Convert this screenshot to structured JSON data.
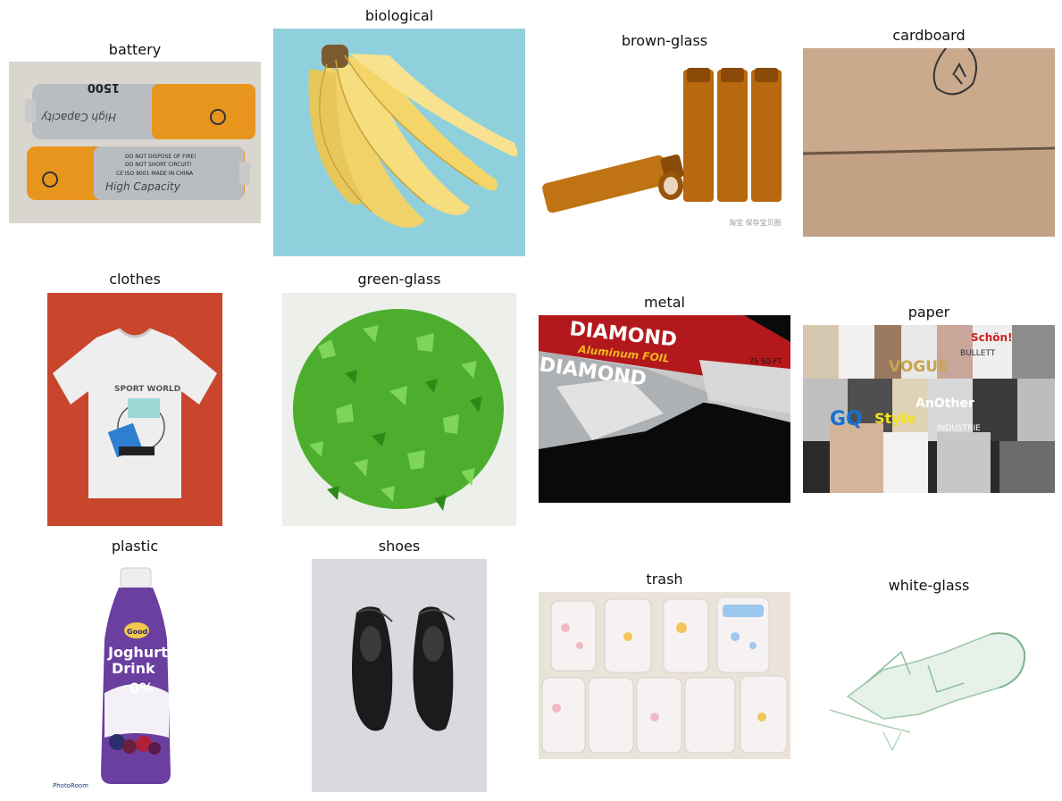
{
  "grid": {
    "titles": [
      "battery",
      "biological",
      "brown-glass",
      "cardboard",
      "clothes",
      "green-glass",
      "metal",
      "paper",
      "plastic",
      "shoes",
      "trash",
      "white-glass"
    ]
  },
  "battery": {
    "text_top": "High Capacity",
    "text_bottom": "High Capacity",
    "line1": "DO NOT DISPOSE OF FIRE!",
    "line2": "DO NOT SHORT CIRCUIT!",
    "line3": "CE  ISO 9001  MADE IN CHINA",
    "size": "1500"
  },
  "brown_glass": {
    "watermark": "淘宝 保存宝贝图"
  },
  "metal": {
    "brand1": "DIAMOND",
    "brand2": "Aluminum FOIL",
    "brand3": "DIAMOND",
    "size": "75 SQ.FT."
  },
  "paper": {
    "mag1": "VOGUE",
    "mag2": "GQ",
    "mag3": "Style",
    "mag4": "AnOther",
    "mag5": "INDUSTRIE",
    "mag6": "Schön!",
    "mag7": "BULLETT"
  },
  "plastic": {
    "brand": "Good",
    "line1": "Joghurt",
    "line2": "Drink",
    "percent": "0%",
    "watermark": "PhotoRoom"
  },
  "colors": {
    "accent_orange": "#e8951e",
    "banana_yellow": "#f3d56a",
    "amber": "#b8680f",
    "cardboard": "#c9a98c",
    "tshirt_bg": "#c8462c",
    "glass_green": "#4cae2c"
  }
}
